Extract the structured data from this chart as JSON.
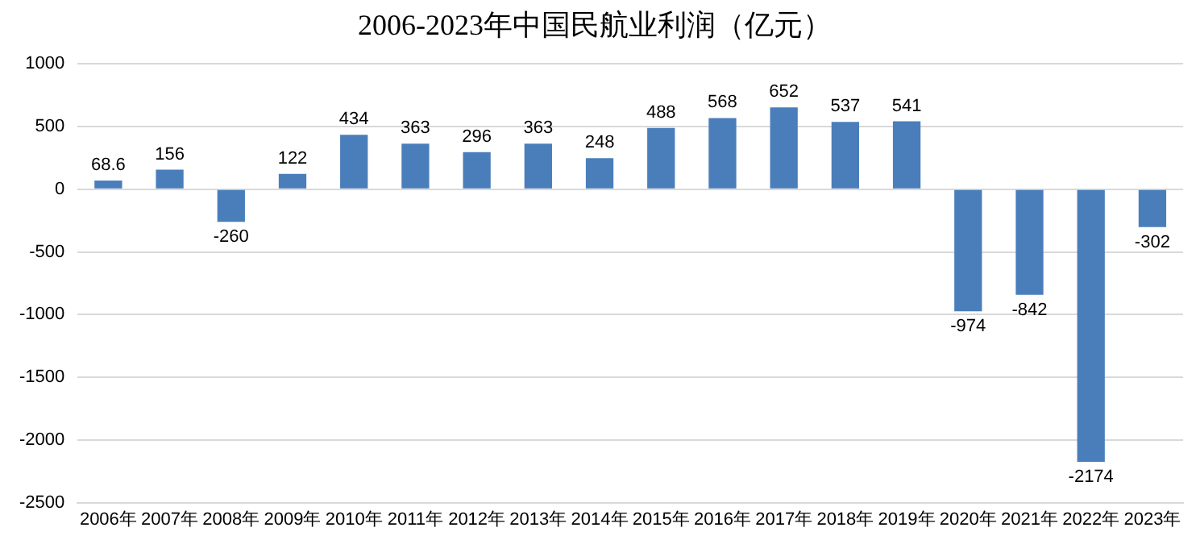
{
  "chart_data": {
    "type": "bar",
    "title": "2006-2023年中国民航业利润（亿元）",
    "categories": [
      "2006年",
      "2007年",
      "2008年",
      "2009年",
      "2010年",
      "2011年",
      "2012年",
      "2013年",
      "2014年",
      "2015年",
      "2016年",
      "2017年",
      "2018年",
      "2019年",
      "2020年",
      "2021年",
      "2022年",
      "2023年"
    ],
    "values": [
      68.6,
      156,
      -260,
      122,
      434,
      363,
      296,
      363,
      248,
      488,
      568,
      652,
      537,
      541,
      -974,
      -842,
      -2174,
      -302
    ],
    "color": "#4a7ebb",
    "ylim": [
      -2500,
      1000
    ],
    "yticks": [
      -2500,
      -2000,
      -1500,
      -1000,
      -500,
      0,
      500,
      1000
    ],
    "grid": "y",
    "legend": false,
    "data_labels": true
  }
}
